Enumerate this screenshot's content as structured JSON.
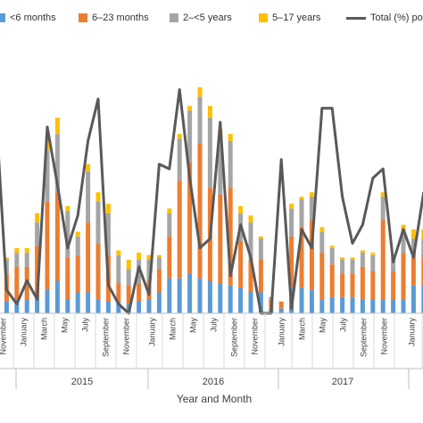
{
  "colors": {
    "lt6": "#5b9bd5",
    "m6_23": "#ed7d31",
    "y2_5": "#a5a5a5",
    "y5_17": "#ffc000",
    "total": "#595959"
  },
  "legend": {
    "lt6": "<6 months",
    "m6_23": "6–23 months",
    "y2_5": "2–<5 years",
    "y5_17": "5–17 years",
    "total": "Total (%) po"
  },
  "chart_data": {
    "type": "bar",
    "stacked": true,
    "xlabel": "Year and Month",
    "years": [
      "2015",
      "2016",
      "2017"
    ],
    "month_labels": [
      "November",
      "January",
      "March",
      "May",
      "July",
      "September",
      "November",
      "January",
      "March",
      "May",
      "July",
      "September",
      "November",
      "January",
      "March",
      "May",
      "July",
      "September",
      "November",
      "January"
    ],
    "ylim": [
      0,
      100
    ],
    "grid": false,
    "legend_position": "top",
    "series": [
      {
        "name": "<6 months",
        "key": "lt6",
        "values": [
          8,
          5,
          6,
          6,
          7,
          10,
          14,
          6,
          9,
          9,
          6,
          5,
          5,
          4,
          5,
          6,
          9,
          15,
          15,
          17,
          15,
          14,
          13,
          12,
          11,
          9,
          9,
          2,
          2,
          11,
          11,
          10,
          6,
          7,
          7,
          7,
          6,
          6,
          6,
          6,
          6,
          12,
          12
        ]
      },
      {
        "name": "6–23 months",
        "key": "m6_23",
        "values": [
          22,
          12,
          14,
          14,
          22,
          38,
          38,
          18,
          16,
          30,
          24,
          20,
          8,
          8,
          8,
          8,
          10,
          18,
          42,
          48,
          58,
          40,
          38,
          42,
          20,
          14,
          14,
          4,
          3,
          22,
          26,
          30,
          20,
          14,
          10,
          10,
          14,
          12,
          34,
          12,
          20,
          12,
          12
        ]
      },
      {
        "name": "2–<5 years",
        "key": "y2_5",
        "values": [
          16,
          6,
          6,
          6,
          10,
          22,
          25,
          20,
          8,
          22,
          18,
          18,
          12,
          7,
          10,
          9,
          5,
          10,
          18,
          22,
          20,
          30,
          24,
          20,
          12,
          16,
          9,
          1,
          0,
          12,
          12,
          10,
          9,
          7,
          6,
          6,
          6,
          7,
          10,
          6,
          8,
          8,
          8
        ]
      },
      {
        "name": "5–17 years",
        "key": "y5_17",
        "values": [
          6,
          1,
          2,
          2,
          4,
          6,
          7,
          2,
          2,
          3,
          4,
          4,
          2,
          4,
          3,
          2,
          1,
          2,
          2,
          2,
          4,
          5,
          4,
          3,
          3,
          3,
          1,
          0,
          0,
          2,
          1,
          2,
          2,
          1,
          1,
          1,
          1,
          1,
          2,
          1,
          4,
          4,
          4
        ]
      },
      {
        "name": "Total (%) po",
        "key": "total",
        "type": "line",
        "values": [
          83,
          10,
          4,
          14,
          6,
          80,
          55,
          28,
          42,
          74,
          92,
          12,
          4,
          0,
          20,
          8,
          64,
          62,
          96,
          58,
          28,
          32,
          82,
          16,
          38,
          24,
          0,
          0,
          66,
          2,
          36,
          28,
          88,
          88,
          50,
          30,
          38,
          58,
          62,
          22,
          36,
          24,
          52
        ]
      }
    ]
  }
}
